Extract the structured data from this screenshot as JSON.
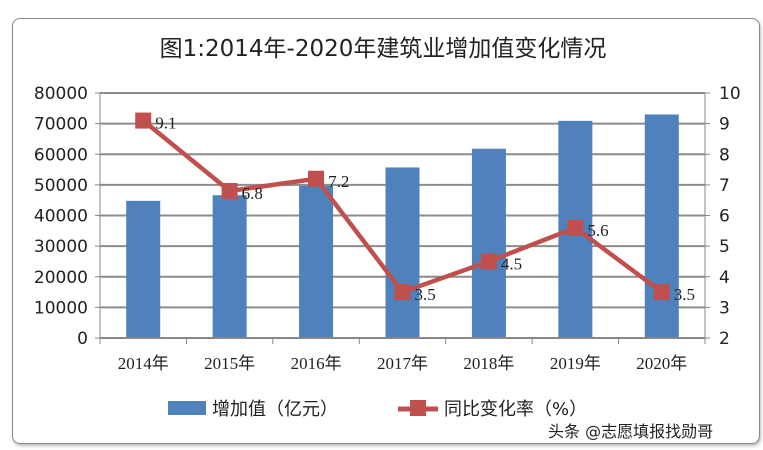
{
  "chart_data": {
    "type": "bar+line",
    "title": "图1:2014年-2020年建筑业增加值变化情况",
    "categories": [
      "2014年",
      "2015年",
      "2016年",
      "2017年",
      "2018年",
      "2019年",
      "2020年"
    ],
    "series": [
      {
        "name": "增加值（亿元）",
        "type": "bar",
        "axis": "left",
        "color": "#4f81bd",
        "values": [
          44789,
          46627,
          49703,
          55689,
          61808,
          70904,
          72996
        ]
      },
      {
        "name": "同比变化率（%）",
        "type": "line",
        "axis": "right",
        "color": "#c0504d",
        "values": [
          9.1,
          6.8,
          7.2,
          3.5,
          4.5,
          5.6,
          3.5
        ],
        "labels": [
          "9.1",
          "6.8",
          "7.2",
          "3.5",
          "4.5",
          "5.6",
          "3.5"
        ]
      }
    ],
    "y_left": {
      "range": [
        0,
        80000
      ],
      "ticks": [
        "0",
        "10000",
        "20000",
        "30000",
        "40000",
        "50000",
        "60000",
        "70000",
        "80000"
      ]
    },
    "y_right": {
      "range": [
        2,
        10
      ],
      "ticks": [
        "2",
        "3",
        "4",
        "5",
        "6",
        "7",
        "8",
        "9",
        "10"
      ]
    },
    "grid": true,
    "legend": "bottom"
  },
  "watermark": "头条 @志愿填报找勋哥"
}
